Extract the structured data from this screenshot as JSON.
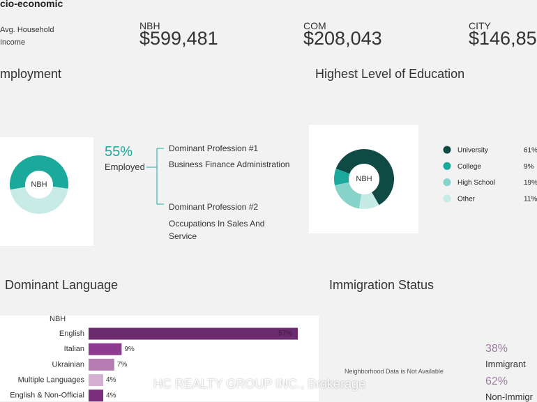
{
  "socio_economic": {
    "title": "cio-economic",
    "metric_lines": [
      "Avg. Household",
      "Income"
    ],
    "columns": [
      {
        "label": "NBH",
        "value": "$599,481"
      },
      {
        "label": "COM",
        "value": "$208,043"
      },
      {
        "label": "CITY",
        "value": "$146,85"
      }
    ]
  },
  "employment": {
    "title": "mployment",
    "center": "NBH",
    "segments": [
      {
        "name": "Employed",
        "value": 55,
        "label": "55%",
        "color": "#1ba99b"
      },
      {
        "value": 45,
        "color": "#c9ebe6"
      }
    ],
    "professions": [
      {
        "heading": "Dominant Profession #1",
        "name": "Business Finance Administration"
      },
      {
        "heading": "Dominant Profession #2",
        "name": "Occupations In Sales And Service"
      }
    ]
  },
  "education": {
    "title": "Highest Level of Education",
    "center": "NBH",
    "segments": [
      {
        "name": "University",
        "value": 61,
        "label": "61%",
        "color": "#0f4a45"
      },
      {
        "name": "College",
        "value": 9,
        "label": "9%",
        "color": "#1ba99b"
      },
      {
        "name": "High School",
        "value": 19,
        "label": "19%",
        "color": "#86d3ca"
      },
      {
        "name": "Other",
        "value": 11,
        "label": "11%",
        "color": "#c6ebe6"
      }
    ]
  },
  "language": {
    "title": "Dominant Language",
    "series_name": "NBH",
    "xlim": [
      0,
      57
    ],
    "bars": [
      {
        "name": "English",
        "value": 57,
        "label": "57%",
        "color": "#6c2a6f"
      },
      {
        "name": "Italian",
        "value": 9,
        "label": "9%",
        "color": "#8d3a90"
      },
      {
        "name": "Ukrainian",
        "value": 7,
        "label": "7%",
        "color": "#b57cb2"
      },
      {
        "name": "Multiple Languages",
        "value": 4,
        "label": "4%",
        "color": "#d6b0d3"
      },
      {
        "name": "English & Non-Official",
        "value": 4,
        "label": "4%",
        "color": "#7a2f7c"
      }
    ]
  },
  "immigration": {
    "title": "Immigration Status",
    "note": "Neighborhood Data is Not Available",
    "groups": [
      {
        "name": "Immigrant",
        "label": "38%"
      },
      {
        "name": "Non-Immigr",
        "label": "62%"
      }
    ]
  },
  "watermark": "HC REALTY GROUP INC., Brokerage"
}
